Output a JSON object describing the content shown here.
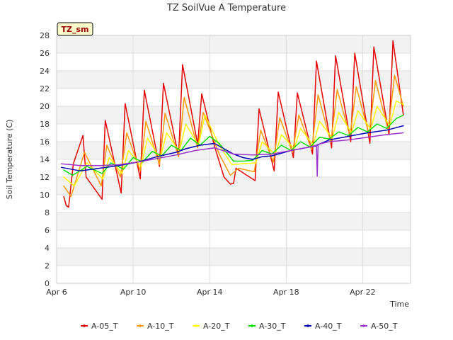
{
  "chart_data": {
    "type": "line",
    "title": "TZ SoilVue A Temperature",
    "xlabel": "Time",
    "ylabel": "Soil Temperature (C)",
    "badge": "TZ_sm",
    "ylim": [
      0,
      28
    ],
    "yticks": [
      0,
      2,
      4,
      6,
      8,
      10,
      12,
      14,
      16,
      18,
      20,
      22,
      24,
      26,
      28
    ],
    "xlim": [
      "2024-04-06",
      "2024-04-24T12:00"
    ],
    "xticks": [
      {
        "value": "2024-04-06",
        "label": "Apr 6"
      },
      {
        "value": "2024-04-10",
        "label": "Apr 10"
      },
      {
        "value": "2024-04-14",
        "label": "Apr 14"
      },
      {
        "value": "2024-04-18",
        "label": "Apr 18"
      },
      {
        "value": "2024-04-22",
        "label": "Apr 22"
      }
    ],
    "grid": true,
    "legend_position": "bottom",
    "series": [
      {
        "name": "A-05_T",
        "color": "#e60000",
        "x": [
          "2024-04-06T09:00",
          "2024-04-06T12:00",
          "2024-04-06T15:00",
          "2024-04-06T21:00",
          "2024-04-07T09:00",
          "2024-04-07T13:00",
          "2024-04-08T09:00",
          "2024-04-08T13:00",
          "2024-04-09T09:00",
          "2024-04-09T14:00",
          "2024-04-10T09:00",
          "2024-04-10T14:00",
          "2024-04-11T09:00",
          "2024-04-11T14:00",
          "2024-04-12T09:00",
          "2024-04-12T14:00",
          "2024-04-13T09:00",
          "2024-04-13T14:00",
          "2024-04-14T06:00",
          "2024-04-14T18:00",
          "2024-04-15T02:00",
          "2024-04-15T06:00",
          "2024-04-15T09:00",
          "2024-04-16T09:00",
          "2024-04-16T14:00",
          "2024-04-17T09:00",
          "2024-04-17T14:00",
          "2024-04-18T09:00",
          "2024-04-18T14:00",
          "2024-04-19T09:00",
          "2024-04-19T14:00",
          "2024-04-20T09:00",
          "2024-04-20T14:00",
          "2024-04-21T09:00",
          "2024-04-21T14:00",
          "2024-04-22T09:00",
          "2024-04-22T14:00",
          "2024-04-23T09:00",
          "2024-04-23T14:00",
          "2024-04-24T03:00"
        ],
        "y": [
          9.8,
          8.8,
          8.6,
          13.5,
          16.7,
          12.0,
          9.5,
          18.4,
          10.2,
          20.3,
          11.8,
          21.8,
          13.2,
          22.6,
          14.3,
          24.7,
          15.7,
          21.4,
          15.5,
          12.0,
          11.2,
          11.3,
          13.0,
          11.6,
          19.7,
          12.7,
          21.6,
          14.2,
          21.5,
          14.6,
          25.1,
          15.3,
          25.7,
          16.0,
          26.0,
          15.8,
          26.7,
          16.8,
          27.4,
          19.0
        ]
      },
      {
        "name": "A-10_T",
        "color": "#ff9900",
        "x": [
          "2024-04-06T09:00",
          "2024-04-06T18:00",
          "2024-04-07T11:00",
          "2024-04-08T08:00",
          "2024-04-08T15:00",
          "2024-04-09T08:00",
          "2024-04-09T16:00",
          "2024-04-10T09:00",
          "2024-04-10T16:00",
          "2024-04-11T09:00",
          "2024-04-11T16:00",
          "2024-04-12T09:00",
          "2024-04-12T16:00",
          "2024-04-13T09:00",
          "2024-04-13T16:00",
          "2024-04-14T12:00",
          "2024-04-15T02:00",
          "2024-04-15T12:00",
          "2024-04-16T08:00",
          "2024-04-16T16:00",
          "2024-04-17T08:00",
          "2024-04-17T16:00",
          "2024-04-18T08:00",
          "2024-04-18T16:00",
          "2024-04-19T08:00",
          "2024-04-19T16:00",
          "2024-04-20T08:00",
          "2024-04-20T16:00",
          "2024-04-21T08:00",
          "2024-04-21T16:00",
          "2024-04-22T08:00",
          "2024-04-22T16:00",
          "2024-04-23T08:00",
          "2024-04-23T16:00",
          "2024-04-24T03:00"
        ],
        "y": [
          11.0,
          9.8,
          14.8,
          11.0,
          15.6,
          12.0,
          17.0,
          12.7,
          18.3,
          13.4,
          19.2,
          14.3,
          21.0,
          15.3,
          19.3,
          14.6,
          12.2,
          13.0,
          12.6,
          17.3,
          13.7,
          18.7,
          14.8,
          19.0,
          15.1,
          21.3,
          15.9,
          21.9,
          16.6,
          22.2,
          16.8,
          22.9,
          17.3,
          23.5,
          20.0
        ]
      },
      {
        "name": "A-20_T",
        "color": "#ffff00",
        "x": [
          "2024-04-06T09:00",
          "2024-04-06T22:00",
          "2024-04-07T14:00",
          "2024-04-08T10:00",
          "2024-04-08T18:00",
          "2024-04-09T10:00",
          "2024-04-09T18:00",
          "2024-04-10T10:00",
          "2024-04-10T18:00",
          "2024-04-11T10:00",
          "2024-04-11T18:00",
          "2024-04-12T10:00",
          "2024-04-12T18:00",
          "2024-04-13T10:00",
          "2024-04-13T18:00",
          "2024-04-14T12:00",
          "2024-04-15T04:00",
          "2024-04-15T16:00",
          "2024-04-16T10:00",
          "2024-04-16T18:00",
          "2024-04-17T10:00",
          "2024-04-17T18:00",
          "2024-04-18T10:00",
          "2024-04-18T18:00",
          "2024-04-19T10:00",
          "2024-04-19T18:00",
          "2024-04-20T10:00",
          "2024-04-20T18:00",
          "2024-04-21T10:00",
          "2024-04-21T18:00",
          "2024-04-22T10:00",
          "2024-04-22T18:00",
          "2024-04-23T10:00",
          "2024-04-23T18:00",
          "2024-04-24T03:00"
        ],
        "y": [
          12.0,
          11.0,
          13.6,
          11.8,
          14.2,
          12.4,
          15.0,
          13.2,
          16.4,
          14.1,
          17.0,
          14.9,
          18.0,
          15.6,
          19.0,
          15.6,
          13.4,
          13.5,
          13.6,
          16.0,
          14.5,
          16.8,
          15.2,
          17.5,
          15.6,
          18.3,
          16.4,
          19.3,
          17.0,
          19.5,
          17.4,
          20.0,
          17.8,
          20.6,
          20.2
        ]
      },
      {
        "name": "A-30_T",
        "color": "#00dd00",
        "x": [
          "2024-04-06T09:00",
          "2024-04-06T20:00",
          "2024-04-07T14:00",
          "2024-04-08T09:00",
          "2024-04-08T20:00",
          "2024-04-09T12:00",
          "2024-04-10T00:00",
          "2024-04-10T12:00",
          "2024-04-11T00:00",
          "2024-04-11T12:00",
          "2024-04-12T00:00",
          "2024-04-12T12:00",
          "2024-04-13T00:00",
          "2024-04-13T12:00",
          "2024-04-14T00:00",
          "2024-04-14T12:00",
          "2024-04-15T06:00",
          "2024-04-15T18:00",
          "2024-04-16T06:00",
          "2024-04-16T18:00",
          "2024-04-17T06:00",
          "2024-04-17T18:00",
          "2024-04-18T06:00",
          "2024-04-18T18:00",
          "2024-04-19T06:00",
          "2024-04-19T18:00",
          "2024-04-20T06:00",
          "2024-04-20T18:00",
          "2024-04-21T06:00",
          "2024-04-21T18:00",
          "2024-04-22T06:00",
          "2024-04-22T18:00",
          "2024-04-23T06:00",
          "2024-04-23T18:00",
          "2024-04-24T03:00"
        ],
        "y": [
          12.8,
          12.2,
          13.2,
          12.4,
          13.6,
          12.9,
          14.2,
          13.7,
          14.9,
          14.4,
          15.6,
          15.0,
          16.4,
          15.6,
          16.6,
          15.8,
          13.8,
          13.8,
          13.9,
          15.0,
          14.6,
          15.6,
          15.0,
          16.0,
          15.4,
          16.5,
          16.3,
          17.1,
          16.7,
          17.6,
          17.1,
          18.0,
          17.5,
          18.6,
          19.0
        ]
      },
      {
        "name": "A-40_T",
        "color": "#0000bb",
        "x": [
          "2024-04-06T06:00",
          "2024-04-07T06:00",
          "2024-04-08T06:00",
          "2024-04-09T06:00",
          "2024-04-10T06:00",
          "2024-04-11T06:00",
          "2024-04-12T06:00",
          "2024-04-12T18:00",
          "2024-04-13T12:00",
          "2024-04-14T06:00",
          "2024-04-14T18:00",
          "2024-04-15T06:00",
          "2024-04-15T18:00",
          "2024-04-16T06:00",
          "2024-04-16T18:00",
          "2024-04-17T06:00",
          "2024-04-18T06:00",
          "2024-04-19T00:00",
          "2024-04-19T12:00",
          "2024-04-20T06:00",
          "2024-04-21T06:00",
          "2024-04-22T06:00",
          "2024-04-23T06:00",
          "2024-04-24T03:00"
        ],
        "y": [
          13.1,
          12.7,
          13.0,
          13.3,
          13.7,
          14.3,
          14.8,
          15.2,
          15.6,
          15.8,
          15.2,
          14.6,
          14.2,
          14.0,
          14.3,
          14.4,
          15.0,
          15.3,
          15.5,
          16.2,
          16.6,
          17.0,
          17.3,
          17.8
        ]
      },
      {
        "name": "A-50_T",
        "color": "#9933cc",
        "x": [
          "2024-04-06T06:00",
          "2024-04-07T06:00",
          "2024-04-08T06:00",
          "2024-04-09T06:00",
          "2024-04-10T06:00",
          "2024-04-11T06:00",
          "2024-04-12T06:00",
          "2024-04-13T06:00",
          "2024-04-14T06:00",
          "2024-04-15T06:00",
          "2024-04-16T06:00",
          "2024-04-17T06:00",
          "2024-04-18T06:00",
          "2024-04-19T06:00",
          "2024-04-19T14:00",
          "2024-04-19T15:00",
          "2024-04-19T16:00",
          "2024-04-20T06:00",
          "2024-04-21T06:00",
          "2024-04-22T06:00",
          "2024-04-23T06:00",
          "2024-04-24T03:00"
        ],
        "y": [
          13.5,
          13.3,
          13.3,
          13.4,
          13.7,
          14.1,
          14.5,
          15.0,
          15.3,
          14.6,
          14.5,
          14.6,
          15.0,
          15.4,
          15.6,
          12.1,
          15.7,
          16.0,
          16.2,
          16.5,
          16.8,
          17.0
        ]
      }
    ]
  }
}
